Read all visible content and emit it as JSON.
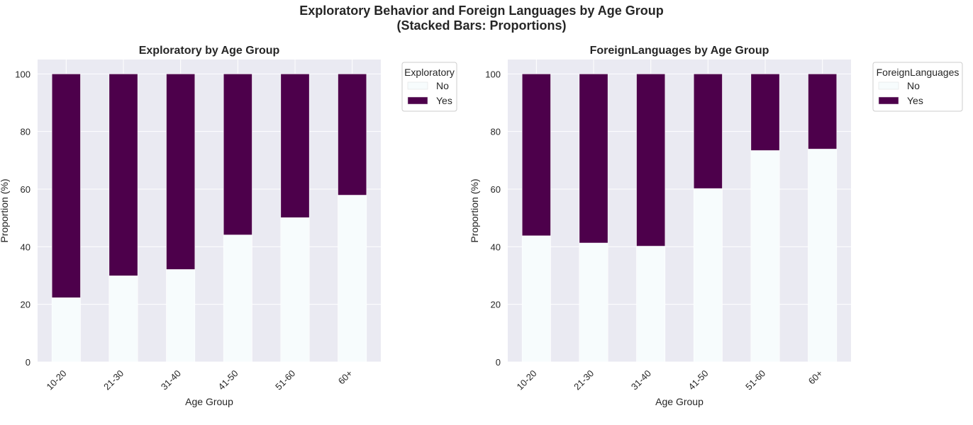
{
  "suptitle_line1": "Exploratory Behavior and Foreign Languages by Age Group",
  "suptitle_line2": "(Stacked Bars: Proportions)",
  "colors": {
    "No": "#f7fcfd",
    "Yes": "#4d004b",
    "plot_bg": "#eaeaf2",
    "grid": "#ffffff"
  },
  "chart_data": [
    {
      "type": "bar",
      "stacked": true,
      "title": "Exploratory by Age Group",
      "xlabel": "Age Group",
      "ylabel": "Proportion (%)",
      "ylim": [
        0,
        105
      ],
      "yticks": [
        0,
        20,
        40,
        60,
        80,
        100
      ],
      "grid": true,
      "legend_title": "Exploratory",
      "legend_placement": "outside-top-right",
      "categories": [
        "10-20",
        "21-30",
        "31-40",
        "41-50",
        "51-60",
        "60+"
      ],
      "series": [
        {
          "name": "No",
          "values": [
            22.3,
            29.9,
            32.1,
            44.1,
            50.1,
            57.9
          ]
        },
        {
          "name": "Yes",
          "values": [
            77.7,
            70.1,
            67.9,
            55.9,
            49.9,
            42.1
          ]
        }
      ]
    },
    {
      "type": "bar",
      "stacked": true,
      "title": "ForeignLanguages by Age Group",
      "xlabel": "Age Group",
      "ylabel": "Proportion (%)",
      "ylim": [
        0,
        105
      ],
      "yticks": [
        0,
        20,
        40,
        60,
        80,
        100
      ],
      "grid": true,
      "legend_title": "ForeignLanguages",
      "legend_placement": "outside-top-right",
      "categories": [
        "10-20",
        "21-30",
        "31-40",
        "41-50",
        "51-60",
        "60+"
      ],
      "series": [
        {
          "name": "No",
          "values": [
            43.8,
            41.3,
            40.2,
            60.2,
            73.4,
            73.9
          ]
        },
        {
          "name": "Yes",
          "values": [
            56.2,
            58.7,
            59.8,
            39.8,
            26.6,
            26.1
          ]
        }
      ]
    }
  ]
}
